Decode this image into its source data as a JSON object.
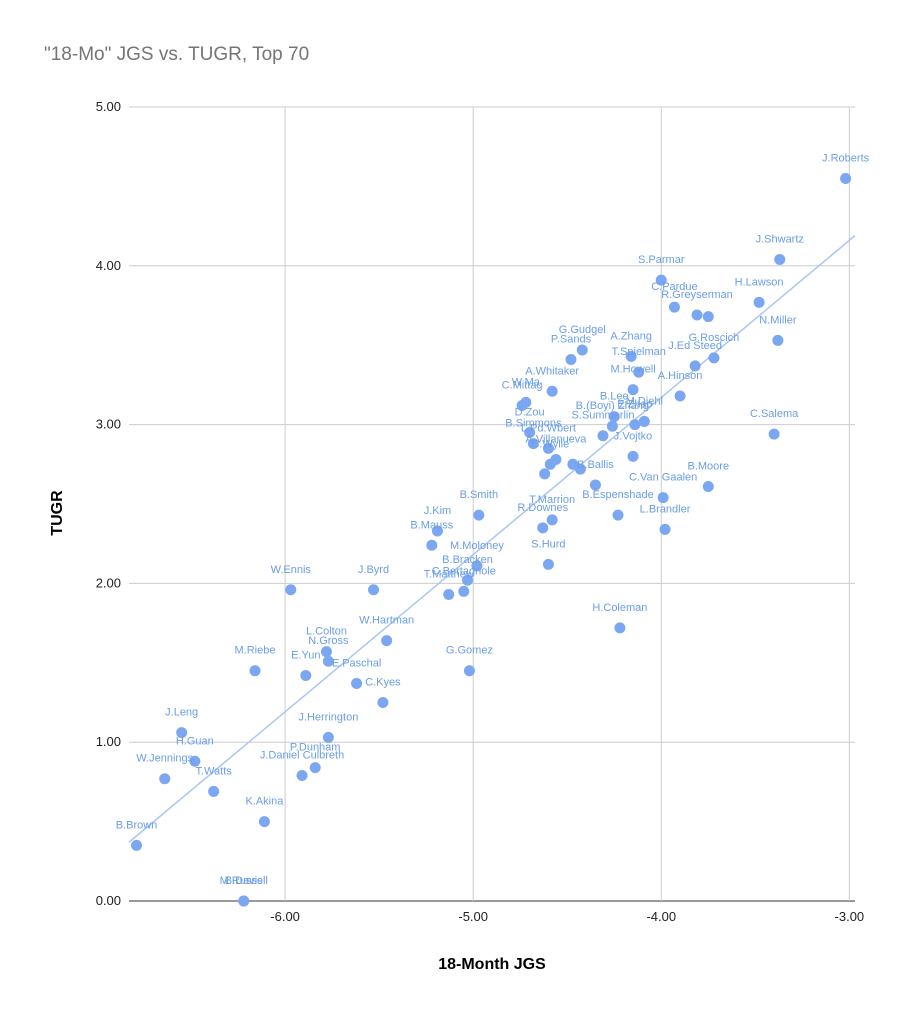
{
  "chart_data": {
    "type": "scatter",
    "title": "\"18-Mo\" JGS vs. TUGR, Top 70",
    "xlabel": "18-Month JGS",
    "ylabel": "TUGR",
    "xlim": [
      -6.83,
      -2.97
    ],
    "ylim": [
      0,
      5
    ],
    "x_ticks": [
      -6,
      -5,
      -4,
      -3
    ],
    "x_tick_labels": [
      "-6.00",
      "-5.00",
      "-4.00",
      "-3.00"
    ],
    "y_ticks": [
      0,
      1,
      2,
      3,
      4,
      5
    ],
    "y_tick_labels": [
      "0.00",
      "1.00",
      "2.00",
      "3.00",
      "4.00",
      "5.00"
    ],
    "grid": true,
    "legend": "none",
    "colors": {
      "points": "#7ba7f2",
      "labels": "#6a9de8",
      "trendline": "#a9c6f5",
      "grid": "#cccccc",
      "title": "#757575"
    },
    "trendline": {
      "type": "linear",
      "x": [
        -6.83,
        -2.97
      ],
      "y": [
        0.37,
        4.19
      ]
    },
    "points": [
      {
        "label": "J.Roberts",
        "x": -3.02,
        "y": 4.55
      },
      {
        "label": "J.Shwartz",
        "x": -3.37,
        "y": 4.04
      },
      {
        "label": "H.Lawson",
        "x": -3.48,
        "y": 3.77
      },
      {
        "label": "N.Miller",
        "x": -3.38,
        "y": 3.53
      },
      {
        "label": "C.Salema",
        "x": -3.4,
        "y": 2.94
      },
      {
        "label": "S.Parmar",
        "x": -4.0,
        "y": 3.91
      },
      {
        "label": "C.Pardue",
        "x": -3.93,
        "y": 3.74
      },
      {
        "label": "R.Greyserman",
        "x": -3.81,
        "y": 3.69
      },
      {
        "label": "",
        "x": -3.75,
        "y": 3.68
      },
      {
        "label": "G.Roscich",
        "x": -3.72,
        "y": 3.42
      },
      {
        "label": "J.Ed Steed",
        "x": -3.82,
        "y": 3.37
      },
      {
        "label": "A.Hinson",
        "x": -3.9,
        "y": 3.18
      },
      {
        "label": "A.Zhang",
        "x": -4.16,
        "y": 3.43
      },
      {
        "label": "T.Spielman",
        "x": -4.12,
        "y": 3.33
      },
      {
        "label": "G.Gudgel",
        "x": -4.42,
        "y": 3.47
      },
      {
        "label": "P.Sands",
        "x": -4.48,
        "y": 3.41
      },
      {
        "label": "A.Whitaker",
        "x": -4.58,
        "y": 3.21
      },
      {
        "label": "M.Howell",
        "x": -4.15,
        "y": 3.22
      },
      {
        "label": "M.Diehl",
        "x": -4.09,
        "y": 3.02
      },
      {
        "label": "E.Zhao",
        "x": -4.14,
        "y": 3.0
      },
      {
        "label": "B.Lee",
        "x": -4.25,
        "y": 3.05
      },
      {
        "label": "B.(Boyi) Zhang",
        "x": -4.26,
        "y": 2.99
      },
      {
        "label": "S.Summerlin",
        "x": -4.31,
        "y": 2.93
      },
      {
        "label": "J.Vojtko",
        "x": -4.15,
        "y": 2.8
      },
      {
        "label": "W.Ma",
        "x": -4.72,
        "y": 3.14
      },
      {
        "label": "C.Mittag",
        "x": -4.74,
        "y": 3.12
      },
      {
        "label": "D.Zou",
        "x": -4.7,
        "y": 2.95
      },
      {
        "label": "B.Simmons",
        "x": -4.68,
        "y": 2.88
      },
      {
        "label": "L.Pd.Wbert",
        "x": -4.6,
        "y": 2.85
      },
      {
        "label": "A.Villanueva",
        "x": -4.56,
        "y": 2.78
      },
      {
        "label": "C.Wylie",
        "x": -4.59,
        "y": 2.75
      },
      {
        "label": "",
        "x": -4.47,
        "y": 2.75
      },
      {
        "label": "",
        "x": -4.43,
        "y": 2.72
      },
      {
        "label": "B.Ballis",
        "x": -4.35,
        "y": 2.62
      },
      {
        "label": "",
        "x": -4.62,
        "y": 2.69
      },
      {
        "label": "C.Van Gaalen",
        "x": -3.99,
        "y": 2.54
      },
      {
        "label": "B.Moore",
        "x": -3.75,
        "y": 2.61
      },
      {
        "label": "B.Espenshade",
        "x": -4.23,
        "y": 2.43
      },
      {
        "label": "L.Brandler",
        "x": -3.98,
        "y": 2.34
      },
      {
        "label": "T.Marrion",
        "x": -4.58,
        "y": 2.4
      },
      {
        "label": "R.Downes",
        "x": -4.63,
        "y": 2.35
      },
      {
        "label": "S.Hurd",
        "x": -4.6,
        "y": 2.12
      },
      {
        "label": "H.Coleman",
        "x": -4.22,
        "y": 1.72
      },
      {
        "label": "B.Smith",
        "x": -4.97,
        "y": 2.43
      },
      {
        "label": "J.Kim",
        "x": -5.19,
        "y": 2.33
      },
      {
        "label": "B.Mauss",
        "x": -5.22,
        "y": 2.24
      },
      {
        "label": "M.Moloney",
        "x": -4.98,
        "y": 2.11
      },
      {
        "label": "B.Bracken",
        "x": -5.03,
        "y": 2.02
      },
      {
        "label": "C.Bertagnole",
        "x": -5.05,
        "y": 1.95
      },
      {
        "label": "T.Matthew",
        "x": -5.13,
        "y": 1.93
      },
      {
        "label": "G.Gomez",
        "x": -5.02,
        "y": 1.45
      },
      {
        "label": "J.Byrd",
        "x": -5.53,
        "y": 1.96
      },
      {
        "label": "W.Ennis",
        "x": -5.97,
        "y": 1.96
      },
      {
        "label": "W.Hartman",
        "x": -5.46,
        "y": 1.64
      },
      {
        "label": "L.Colton",
        "x": -5.78,
        "y": 1.57
      },
      {
        "label": "N.Gross",
        "x": -5.77,
        "y": 1.51
      },
      {
        "label": "E.Paschal",
        "x": -5.62,
        "y": 1.37
      },
      {
        "label": "E.Yun",
        "x": -5.89,
        "y": 1.42
      },
      {
        "label": "C.Kyes",
        "x": -5.48,
        "y": 1.25
      },
      {
        "label": "J.Herrington",
        "x": -5.77,
        "y": 1.03
      },
      {
        "label": "M.Riebe",
        "x": -6.16,
        "y": 1.45
      },
      {
        "label": "P.Dunham",
        "x": -5.84,
        "y": 0.84
      },
      {
        "label": "J.Daniel Culbreth",
        "x": -5.91,
        "y": 0.79
      },
      {
        "label": "K.Akina",
        "x": -6.11,
        "y": 0.5
      },
      {
        "label": "J.Leng",
        "x": -6.55,
        "y": 1.06
      },
      {
        "label": "H.Guan",
        "x": -6.48,
        "y": 0.88
      },
      {
        "label": "W.Jennings",
        "x": -6.64,
        "y": 0.77
      },
      {
        "label": "T.Watts",
        "x": -6.38,
        "y": 0.69
      },
      {
        "label": "B.Davis",
        "x": -6.22,
        "y": 0.0
      },
      {
        "label": "B.Brown",
        "x": -6.79,
        "y": 0.35
      },
      {
        "label": "M.Russell",
        "x": -6.22,
        "y": 0.0
      }
    ]
  }
}
